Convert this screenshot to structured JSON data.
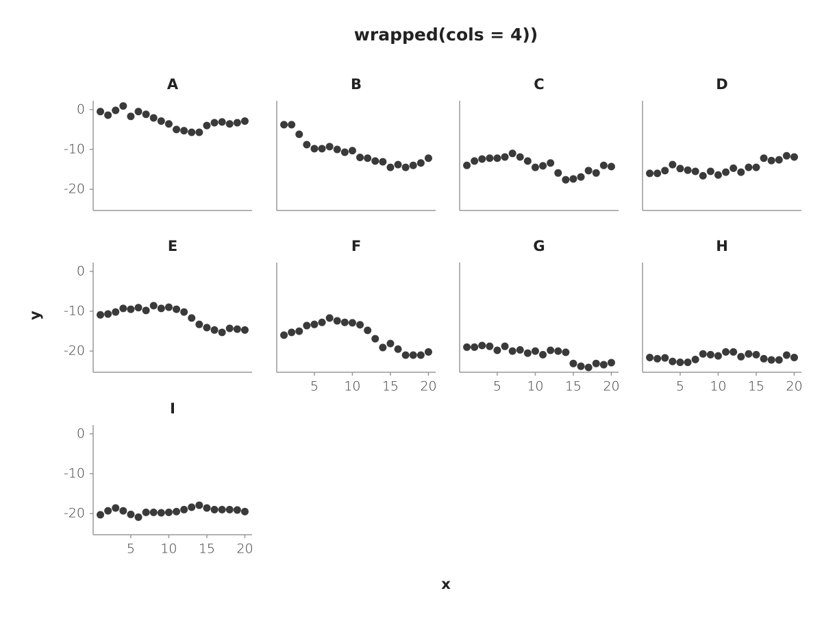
{
  "title": "wrapped(cols = 4))",
  "xlabel": "x",
  "ylabel": "y",
  "chart_data": [
    {
      "type": "scatter",
      "title": "A",
      "color": "#3a3a3a",
      "x": [
        1,
        2,
        3,
        4,
        5,
        6,
        7,
        8,
        9,
        10,
        11,
        12,
        13,
        14,
        15,
        16,
        17,
        18,
        19,
        20
      ],
      "values": [
        -0.5,
        -1.4,
        -0.2,
        0.9,
        -1.7,
        -0.5,
        -1.2,
        -2.1,
        -2.9,
        -3.6,
        -5.0,
        -5.3,
        -5.7,
        -5.7,
        -4.0,
        -3.3,
        -3.1,
        -3.6,
        -3.3,
        -2.9
      ],
      "xlim": [
        0.05,
        20.95
      ],
      "ylim": [
        -25.3,
        2.2
      ],
      "yticks": [
        0,
        -10,
        -20
      ]
    },
    {
      "type": "scatter",
      "title": "B",
      "color": "#3a3a3a",
      "x": [
        1,
        2,
        3,
        4,
        5,
        6,
        7,
        8,
        9,
        10,
        11,
        12,
        13,
        14,
        15,
        16,
        17,
        18,
        19,
        20
      ],
      "values": [
        -3.8,
        -3.8,
        -6.2,
        -8.8,
        -9.8,
        -9.8,
        -9.3,
        -10,
        -10.7,
        -10.3,
        -12,
        -12.2,
        -12.9,
        -13.1,
        -14.5,
        -13.8,
        -14.5,
        -14,
        -13.4,
        -12.2
      ],
      "xlim": [
        0.05,
        20.95
      ],
      "ylim": [
        -25.3,
        2.2
      ]
    },
    {
      "type": "scatter",
      "title": "C",
      "color": "#3a3a3a",
      "x": [
        1,
        2,
        3,
        4,
        5,
        6,
        7,
        8,
        9,
        10,
        11,
        12,
        13,
        14,
        15,
        16,
        17,
        18,
        19,
        20
      ],
      "values": [
        -14,
        -12.9,
        -12.4,
        -12.2,
        -12.2,
        -11.9,
        -11,
        -11.9,
        -12.9,
        -14.5,
        -14.1,
        -13.4,
        -15.9,
        -17.6,
        -17.4,
        -16.9,
        -15.3,
        -15.9,
        -14,
        -14.3
      ],
      "xlim": [
        0.05,
        20.95
      ],
      "ylim": [
        -25.3,
        2.2
      ]
    },
    {
      "type": "scatter",
      "title": "D",
      "color": "#3a3a3a",
      "x": [
        1,
        2,
        3,
        4,
        5,
        6,
        7,
        8,
        9,
        10,
        11,
        12,
        13,
        14,
        15,
        16,
        17,
        18,
        19,
        20
      ],
      "values": [
        -16,
        -16,
        -15.3,
        -13.8,
        -14.8,
        -15.2,
        -15.5,
        -16.6,
        -15.5,
        -16.4,
        -15.7,
        -14.7,
        -15.7,
        -14.5,
        -14.5,
        -12.2,
        -12.8,
        -12.6,
        -11.6,
        -11.9
      ],
      "xlim": [
        0.05,
        20.95
      ],
      "ylim": [
        -25.3,
        2.2
      ]
    },
    {
      "type": "scatter",
      "title": "E",
      "color": "#3a3a3a",
      "x": [
        1,
        2,
        3,
        4,
        5,
        6,
        7,
        8,
        9,
        10,
        11,
        12,
        13,
        14,
        15,
        16,
        17,
        18,
        19,
        20
      ],
      "values": [
        -10.9,
        -10.7,
        -10.2,
        -9.3,
        -9.5,
        -9.1,
        -9.8,
        -8.6,
        -9.3,
        -9,
        -9.5,
        -10.2,
        -11.7,
        -13.3,
        -14.1,
        -14.7,
        -15.3,
        -14.3,
        -14.5,
        -14.7
      ],
      "xlim": [
        0.05,
        20.95
      ],
      "ylim": [
        -25.3,
        2.2
      ],
      "yticks": [
        0,
        -10,
        -20
      ]
    },
    {
      "type": "scatter",
      "title": "F",
      "color": "#3a3a3a",
      "x": [
        1,
        2,
        3,
        4,
        5,
        6,
        7,
        8,
        9,
        10,
        11,
        12,
        13,
        14,
        15,
        16,
        17,
        18,
        19,
        20
      ],
      "values": [
        -16,
        -15.3,
        -15,
        -13.6,
        -13.3,
        -12.8,
        -11.7,
        -12.4,
        -12.8,
        -12.9,
        -13.4,
        -14.8,
        -16.9,
        -19.1,
        -18.1,
        -19.5,
        -21,
        -21,
        -21,
        -20.2
      ],
      "xlim": [
        0.05,
        20.95
      ],
      "ylim": [
        -25.3,
        2.2
      ],
      "xticks": [
        5,
        10,
        15,
        20
      ]
    },
    {
      "type": "scatter",
      "title": "G",
      "color": "#3a3a3a",
      "x": [
        1,
        2,
        3,
        4,
        5,
        6,
        7,
        8,
        9,
        10,
        11,
        12,
        13,
        14,
        15,
        16,
        17,
        18,
        19,
        20
      ],
      "values": [
        -19,
        -19,
        -18.6,
        -18.8,
        -19.8,
        -18.8,
        -20,
        -19.7,
        -20.5,
        -20,
        -20.9,
        -19.8,
        -20,
        -20.3,
        -23.1,
        -23.8,
        -24.1,
        -23.1,
        -23.4,
        -22.9
      ],
      "xlim": [
        0.05,
        20.95
      ],
      "ylim": [
        -25.3,
        2.2
      ],
      "xticks": [
        5,
        10,
        15,
        20
      ]
    },
    {
      "type": "scatter",
      "title": "H",
      "color": "#3a3a3a",
      "x": [
        1,
        2,
        3,
        4,
        5,
        6,
        7,
        8,
        9,
        10,
        11,
        12,
        13,
        14,
        15,
        16,
        17,
        18,
        19,
        20
      ],
      "values": [
        -21.6,
        -21.9,
        -21.7,
        -22.6,
        -22.8,
        -22.8,
        -22.1,
        -20.7,
        -20.9,
        -21.2,
        -20.2,
        -20.2,
        -21.4,
        -20.7,
        -20.9,
        -21.9,
        -22.2,
        -22.2,
        -21,
        -21.6
      ],
      "xlim": [
        0.05,
        20.95
      ],
      "ylim": [
        -25.3,
        2.2
      ],
      "xticks": [
        5,
        10,
        15,
        20
      ]
    },
    {
      "type": "scatter",
      "title": "I",
      "color": "#3a3a3a",
      "x": [
        1,
        2,
        3,
        4,
        5,
        6,
        7,
        8,
        9,
        10,
        11,
        12,
        13,
        14,
        15,
        16,
        17,
        18,
        19,
        20
      ],
      "values": [
        -20.3,
        -19.3,
        -18.6,
        -19.3,
        -20.2,
        -20.9,
        -19.7,
        -19.7,
        -19.8,
        -19.7,
        -19.5,
        -19,
        -18.4,
        -17.9,
        -18.6,
        -19,
        -19,
        -19,
        -19.1,
        -19.5
      ],
      "xlim": [
        0.05,
        20.95
      ],
      "ylim": [
        -25.3,
        2.2
      ],
      "yticks": [
        0,
        -10,
        -20
      ],
      "xticks": [
        5,
        10,
        15,
        20
      ]
    }
  ]
}
